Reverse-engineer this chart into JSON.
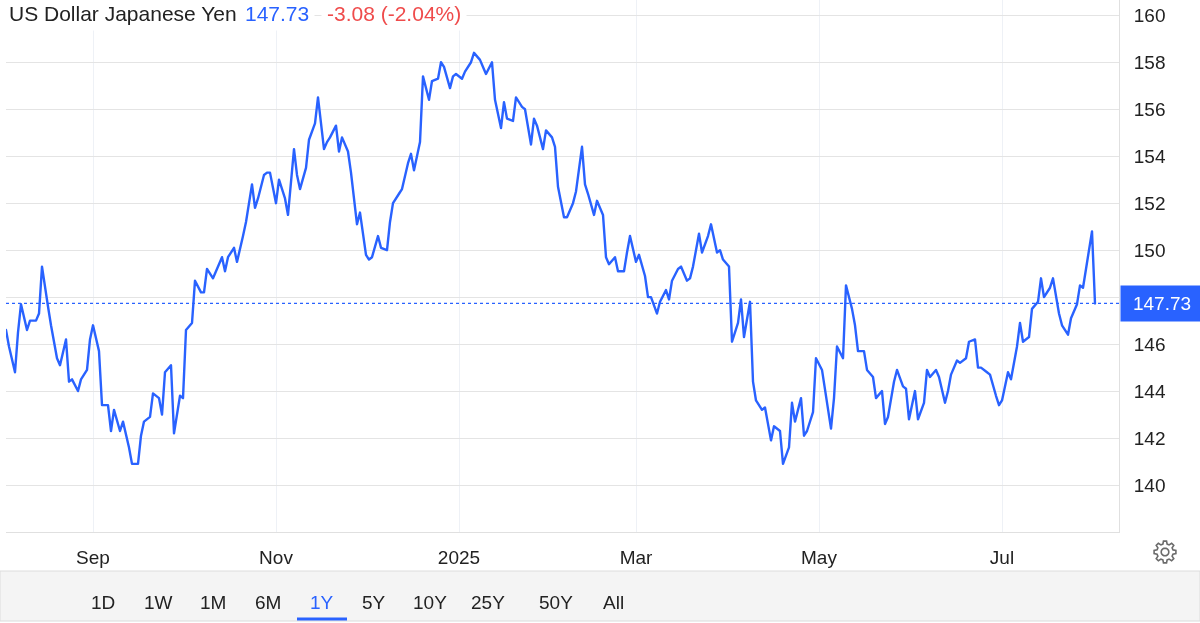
{
  "chart_data": {
    "type": "line",
    "title": "US Dollar Japanese Yen",
    "annotations": [
      "147.73",
      "-3.08 (-2.04%)",
      "1D",
      "1W",
      "1M",
      "6M",
      "1Y",
      "5Y",
      "10Y",
      "25Y",
      "50Y",
      "All"
    ],
    "x": [
      "2024-08-03",
      "2024-08-04",
      "2024-08-06",
      "2024-08-07",
      "2024-08-08",
      "2024-08-10",
      "2024-08-11",
      "2024-08-13",
      "2024-08-14",
      "2024-08-15",
      "2024-08-17",
      "2024-08-18",
      "2024-08-20",
      "2024-08-21",
      "2024-08-23",
      "2024-08-24",
      "2024-08-25",
      "2024-08-27",
      "2024-08-28",
      "2024-08-30",
      "2024-08-31",
      "2024-09-01",
      "2024-09-03",
      "2024-09-04",
      "2024-09-06",
      "2024-09-07",
      "2024-09-08",
      "2024-09-10",
      "2024-09-11",
      "2024-09-13",
      "2024-09-14",
      "2024-09-16",
      "2024-09-17",
      "2024-09-18",
      "2024-09-20",
      "2024-09-21",
      "2024-09-23",
      "2024-09-24",
      "2024-09-25",
      "2024-09-27",
      "2024-09-28",
      "2024-09-30",
      "2024-10-01",
      "2024-10-02",
      "2024-10-04",
      "2024-10-05",
      "2024-10-07",
      "2024-10-08",
      "2024-10-09",
      "2024-10-11",
      "2024-10-12",
      "2024-10-14",
      "2024-10-15",
      "2024-10-16",
      "2024-10-18",
      "2024-10-19",
      "2024-10-21",
      "2024-10-22",
      "2024-10-24",
      "2024-10-25",
      "2024-10-26",
      "2024-10-28",
      "2024-10-29",
      "2024-10-30",
      "2024-11-01",
      "2024-11-02",
      "2024-11-04",
      "2024-11-05",
      "2024-11-07",
      "2024-11-08",
      "2024-11-09",
      "2024-11-11",
      "2024-11-12",
      "2024-11-14",
      "2024-11-15",
      "2024-11-17",
      "2024-11-18",
      "2024-11-19",
      "2024-11-21",
      "2024-11-22",
      "2024-11-23",
      "2024-11-25",
      "2024-11-26",
      "2024-11-28",
      "2024-11-29",
      "2024-12-01",
      "2024-12-02",
      "2024-12-03",
      "2024-12-05",
      "2024-12-06",
      "2024-12-08",
      "2024-12-09",
      "2024-12-10",
      "2024-12-12",
      "2024-12-13",
      "2024-12-15",
      "2024-12-16",
      "2024-12-17",
      "2024-12-19",
      "2024-12-20",
      "2024-12-22",
      "2024-12-23",
      "2024-12-25",
      "2024-12-26",
      "2024-12-27",
      "2024-12-29",
      "2024-12-30",
      "2024-12-31",
      "2025-01-02",
      "2025-01-03",
      "2025-01-05",
      "2025-01-06",
      "2025-01-08",
      "2025-01-09",
      "2025-01-10",
      "2025-01-12",
      "2025-01-13",
      "2025-01-15",
      "2025-01-16",
      "2025-01-17",
      "2025-01-19",
      "2025-01-20",
      "2025-01-22",
      "2025-01-23",
      "2025-01-25",
      "2025-01-26",
      "2025-01-27",
      "2025-01-29",
      "2025-01-30",
      "2025-02-01",
      "2025-02-02",
      "2025-02-03",
      "2025-02-05",
      "2025-02-06",
      "2025-02-08",
      "2025-02-09",
      "2025-02-11",
      "2025-02-12",
      "2025-02-13",
      "2025-02-15",
      "2025-02-16",
      "2025-02-18",
      "2025-02-19",
      "2025-02-20",
      "2025-02-22",
      "2025-02-23",
      "2025-02-25",
      "2025-02-26",
      "2025-02-27",
      "2025-03-01",
      "2025-03-02",
      "2025-03-04",
      "2025-03-05",
      "2025-03-06",
      "2025-03-08",
      "2025-03-09",
      "2025-03-11",
      "2025-03-12",
      "2025-03-13",
      "2025-03-15",
      "2025-03-16",
      "2025-03-18",
      "2025-03-19",
      "2025-03-20",
      "2025-03-22",
      "2025-03-23",
      "2025-03-25",
      "2025-03-26",
      "2025-03-28",
      "2025-03-29",
      "2025-03-30",
      "2025-04-01",
      "2025-04-02",
      "2025-04-04",
      "2025-04-05",
      "2025-04-06",
      "2025-04-08",
      "2025-04-09",
      "2025-04-10",
      "2025-04-12",
      "2025-04-13",
      "2025-04-15",
      "2025-04-16",
      "2025-04-18",
      "2025-04-19",
      "2025-04-21",
      "2025-04-22",
      "2025-04-23",
      "2025-04-25",
      "2025-04-26",
      "2025-04-27",
      "2025-04-29",
      "2025-04-30",
      "2025-05-02",
      "2025-05-05",
      "2025-05-06",
      "2025-05-07",
      "2025-05-09",
      "2025-05-10",
      "2025-05-12",
      "2025-05-13",
      "2025-05-14",
      "2025-05-16",
      "2025-05-17",
      "2025-05-19",
      "2025-05-20",
      "2025-05-22",
      "2025-05-23",
      "2025-05-24",
      "2025-05-26",
      "2025-05-27",
      "2025-05-29",
      "2025-05-30",
      "2025-05-31",
      "2025-06-02",
      "2025-06-03",
      "2025-06-05",
      "2025-06-06",
      "2025-06-07",
      "2025-06-09",
      "2025-06-10",
      "2025-06-12",
      "2025-06-13",
      "2025-06-14",
      "2025-06-16",
      "2025-06-17",
      "2025-06-19",
      "2025-06-20",
      "2025-06-22",
      "2025-06-23",
      "2025-06-24",
      "2025-06-26",
      "2025-06-27",
      "2025-06-29",
      "2025-06-30",
      "2025-07-01",
      "2025-07-03",
      "2025-07-04",
      "2025-07-06",
      "2025-07-07",
      "2025-07-08",
      "2025-07-10",
      "2025-07-11",
      "2025-07-13",
      "2025-07-14",
      "2025-07-15",
      "2025-07-17",
      "2025-07-18",
      "2025-07-20",
      "2025-07-21",
      "2025-07-23",
      "2025-07-24",
      "2025-07-26",
      "2025-07-27",
      "2025-07-28",
      "2025-07-29",
      "2025-07-31",
      "2025-08-01"
    ],
    "values": [
      146.6,
      145.9,
      144.8,
      146.5,
      147.7,
      146.6,
      147.0,
      147.0,
      147.3,
      149.3,
      147.6,
      146.8,
      145.4,
      145.1,
      146.2,
      144.4,
      144.5,
      144.0,
      144.5,
      144.9,
      146.2,
      146.8,
      145.7,
      143.4,
      143.4,
      142.3,
      143.2,
      142.3,
      142.7,
      141.6,
      140.9,
      140.9,
      142.1,
      142.7,
      142.9,
      143.9,
      143.7,
      143.0,
      144.8,
      145.1,
      142.2,
      143.8,
      143.7,
      146.6,
      146.9,
      148.7,
      148.2,
      148.2,
      149.2,
      148.8,
      149.1,
      149.7,
      149.1,
      149.7,
      150.1,
      149.5,
      150.6,
      151.2,
      152.8,
      151.8,
      152.2,
      153.2,
      153.3,
      153.3,
      152.0,
      153.0,
      152.2,
      151.5,
      154.3,
      153.2,
      152.6,
      153.5,
      154.7,
      155.4,
      156.5,
      154.3,
      154.6,
      154.8,
      155.3,
      154.2,
      154.8,
      154.2,
      153.3,
      151.1,
      151.6,
      149.8,
      149.6,
      149.7,
      150.6,
      150.1,
      150.0,
      151.2,
      152.0,
      152.4,
      152.6,
      153.7,
      154.1,
      153.4,
      154.6,
      157.4,
      156.4,
      157.2,
      157.3,
      158.0,
      157.8,
      156.9,
      157.4,
      157.5,
      157.3,
      157.6,
      158.0,
      158.4,
      158.1,
      157.8,
      157.5,
      158.0,
      156.4,
      155.2,
      156.3,
      155.6,
      155.5,
      156.5,
      156.1,
      156.0,
      154.5,
      155.6,
      155.3,
      154.3,
      155.1,
      154.8,
      154.4,
      152.7,
      151.4,
      151.4,
      152.0,
      152.5,
      154.4,
      152.8,
      152.4,
      151.5,
      152.1,
      151.5,
      149.7,
      149.4,
      149.7,
      149.1,
      149.1,
      149.9,
      150.6,
      149.5,
      149.8,
      148.9,
      148.0,
      148.0,
      147.3,
      147.8,
      148.3,
      147.9,
      148.7,
      149.2,
      149.3,
      148.7,
      148.8,
      149.3,
      150.7,
      149.9,
      150.6,
      151.1,
      149.9,
      150.0,
      149.6,
      149.3,
      146.1,
      146.9,
      147.9,
      146.3,
      147.8,
      144.4,
      143.6,
      143.2,
      143.3,
      141.9,
      142.5,
      142.3,
      140.9,
      141.6,
      143.5,
      142.7,
      143.7,
      142.1,
      142.3,
      143.1,
      145.4,
      144.9,
      142.4,
      143.7,
      145.9,
      145.4,
      148.5,
      147.5,
      146.8,
      145.7,
      145.7,
      144.9,
      144.6,
      143.7,
      144.0,
      142.6,
      142.9,
      144.4,
      144.9,
      144.2,
      144.1,
      142.8,
      144.0,
      142.8,
      143.5,
      144.9,
      144.6,
      144.9,
      144.6,
      143.5,
      144.0,
      144.7,
      145.3,
      145.2,
      145.4,
      146.1,
      146.2,
      145.0,
      145.0,
      144.8,
      144.7,
      143.8,
      143.4,
      143.6,
      144.8,
      144.5,
      145.9,
      146.9,
      146.1,
      146.3,
      147.5,
      147.8,
      148.8,
      148.0,
      148.4,
      148.8,
      147.3,
      146.8,
      146.4,
      147.1,
      147.7,
      148.5,
      148.4,
      149.2,
      150.8,
      147.73
    ],
    "color": "#2962ff",
    "xlim": [
      "2024-08-03",
      "2025-08-09"
    ],
    "xticks": [
      {
        "value": "2024-09-01",
        "label": "Sep"
      },
      {
        "value": "2024-11-01",
        "label": "Nov"
      },
      {
        "value": "2025-01-01",
        "label": "2025"
      },
      {
        "value": "2025-03-01",
        "label": "Mar"
      },
      {
        "value": "2025-05-01",
        "label": "May"
      },
      {
        "value": "2025-07-01",
        "label": "Jul"
      }
    ],
    "ylim": [
      138.0,
      160.65
    ],
    "yticks": [
      140,
      142,
      144,
      146,
      {
        "value": 148,
        "label": null
      },
      150,
      152,
      154,
      156,
      158,
      160
    ],
    "ref_lines": [
      {
        "axis": "y",
        "value": 147.73,
        "label": "147.73",
        "color": "#2962ff",
        "line_style": "dotted"
      }
    ],
    "grid": true
  }
}
